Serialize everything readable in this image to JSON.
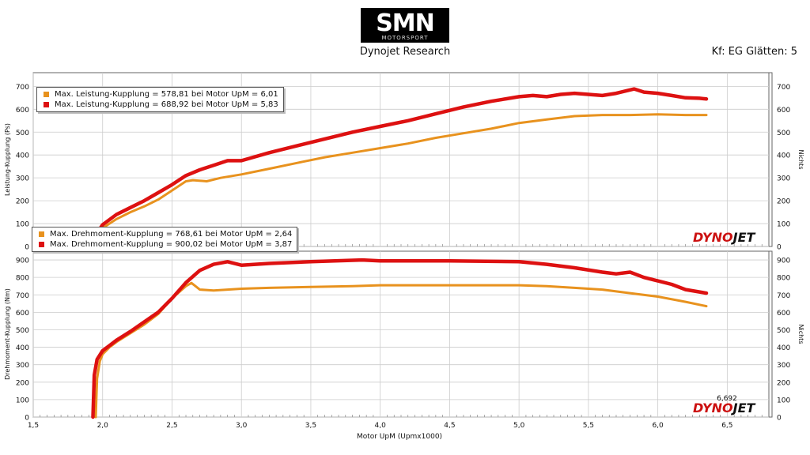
{
  "header": {
    "logo_text": "SMN",
    "logo_subtext": "MOTORSPORT",
    "subtitle": "Dynojet Research",
    "smoothing": "Kf: EG Glätten: 5"
  },
  "brand": {
    "watermark": "DYNOJET",
    "colors": {
      "red": "#cc1111",
      "black": "#111111"
    }
  },
  "cursor_readout": "6,692",
  "colors": {
    "run1": "#e8921e",
    "run2": "#dd1111",
    "grid": "#cccccc"
  },
  "chart_data": [
    {
      "type": "line",
      "ylabel": "Leistung-Kupplung (Ps)",
      "ylabel_right": "Nichts",
      "xlim": [
        1.5,
        6.8
      ],
      "ylim": [
        0,
        760
      ],
      "yticks": [
        0,
        100,
        200,
        300,
        400,
        500,
        600,
        700
      ],
      "grid": true,
      "legend_position": "top-left",
      "legend": [
        "Max. Leistung-Kupplung = 578,81 bei Motor UpM = 6,01",
        "Max. Leistung-Kupplung = 688,92 bei Motor UpM = 5,83"
      ],
      "series": [
        {
          "color": "#e8921e",
          "x": [
            1.95,
            2.0,
            2.1,
            2.2,
            2.3,
            2.4,
            2.5,
            2.6,
            2.65,
            2.75,
            2.85,
            3.0,
            3.2,
            3.4,
            3.6,
            3.8,
            4.0,
            4.2,
            4.4,
            4.6,
            4.8,
            5.0,
            5.2,
            5.4,
            5.6,
            5.8,
            6.0,
            6.2,
            6.35
          ],
          "y": [
            40,
            80,
            120,
            150,
            175,
            205,
            245,
            285,
            290,
            285,
            300,
            315,
            340,
            365,
            390,
            410,
            430,
            450,
            475,
            495,
            515,
            540,
            555,
            570,
            575,
            575,
            578,
            575,
            575
          ]
        },
        {
          "color": "#dd1111",
          "x": [
            1.95,
            2.0,
            2.1,
            2.2,
            2.3,
            2.4,
            2.5,
            2.6,
            2.7,
            2.8,
            2.9,
            3.0,
            3.2,
            3.4,
            3.6,
            3.8,
            4.0,
            4.2,
            4.4,
            4.6,
            4.8,
            5.0,
            5.1,
            5.2,
            5.3,
            5.4,
            5.5,
            5.6,
            5.7,
            5.83,
            5.9,
            6.0,
            6.1,
            6.2,
            6.3,
            6.35
          ],
          "y": [
            50,
            95,
            140,
            170,
            200,
            235,
            270,
            310,
            335,
            355,
            375,
            375,
            410,
            440,
            470,
            500,
            525,
            550,
            580,
            610,
            635,
            655,
            660,
            655,
            665,
            670,
            665,
            660,
            670,
            689,
            675,
            670,
            660,
            650,
            648,
            645
          ]
        }
      ]
    },
    {
      "type": "line",
      "xlabel": "Motor UpM (Upmx1000)",
      "ylabel": "Drehmoment-Kupplung (Nm)",
      "ylabel_right": "Nichts",
      "xlim": [
        1.5,
        6.8
      ],
      "ylim": [
        0,
        950
      ],
      "xticks": [
        "1,5",
        "2,0",
        "2,5",
        "3,0",
        "3,5",
        "4,0",
        "4,5",
        "5,0",
        "5,5",
        "6,0",
        "6,5"
      ],
      "yticks": [
        0,
        100,
        200,
        300,
        400,
        500,
        600,
        700,
        800,
        900
      ],
      "grid": true,
      "legend_position": "top-left",
      "legend": [
        "Max. Drehmoment-Kupplung = 768,61 bei Motor UpM = 2,64",
        "Max. Drehmoment-Kupplung = 900,02 bei Motor UpM = 3,87"
      ],
      "series": [
        {
          "color": "#e8921e",
          "x": [
            1.95,
            1.96,
            1.98,
            2.0,
            2.05,
            2.1,
            2.2,
            2.3,
            2.4,
            2.5,
            2.6,
            2.64,
            2.7,
            2.8,
            3.0,
            3.2,
            3.5,
            3.8,
            4.0,
            4.5,
            5.0,
            5.2,
            5.4,
            5.6,
            5.8,
            6.0,
            6.2,
            6.35
          ],
          "y": [
            0,
            220,
            320,
            360,
            400,
            430,
            480,
            530,
            590,
            680,
            750,
            768,
            730,
            725,
            735,
            740,
            745,
            750,
            755,
            755,
            755,
            750,
            740,
            730,
            710,
            690,
            660,
            635
          ]
        },
        {
          "color": "#dd1111",
          "x": [
            1.93,
            1.94,
            1.96,
            2.0,
            2.05,
            2.1,
            2.2,
            2.3,
            2.4,
            2.5,
            2.6,
            2.7,
            2.8,
            2.9,
            3.0,
            3.2,
            3.5,
            3.87,
            4.0,
            4.5,
            5.0,
            5.2,
            5.4,
            5.6,
            5.7,
            5.8,
            5.9,
            6.0,
            6.1,
            6.2,
            6.35
          ],
          "y": [
            0,
            240,
            330,
            380,
            410,
            440,
            490,
            545,
            600,
            680,
            770,
            840,
            875,
            890,
            870,
            880,
            890,
            900,
            895,
            895,
            890,
            875,
            855,
            830,
            820,
            830,
            800,
            780,
            760,
            730,
            710
          ]
        }
      ]
    }
  ]
}
